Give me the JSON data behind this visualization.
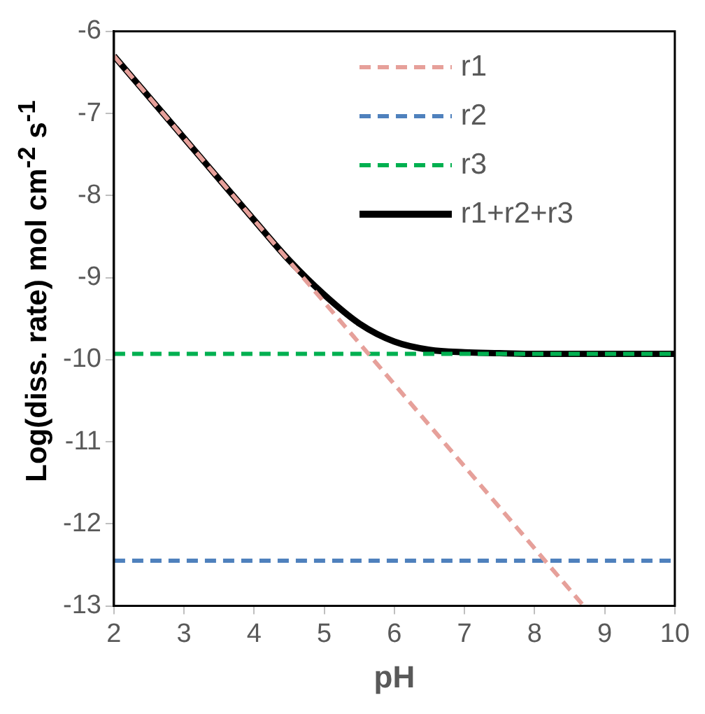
{
  "chart_data": {
    "type": "line",
    "xlabel": "pH",
    "ylabel": "Log(diss. rate) mol cm$^{-2}$ s$^{-1}$",
    "xlim": [
      2,
      10
    ],
    "xticks": [
      2,
      3,
      4,
      5,
      6,
      7,
      8,
      9,
      10
    ],
    "ylim": [
      -13,
      -6
    ],
    "yticks": [
      -13,
      -12,
      -11,
      -10,
      -9,
      -8,
      -7,
      -6
    ],
    "grid": false,
    "legend": "top right",
    "marker": "none",
    "series": [
      {
        "name": "r1",
        "color": "#e6a09a",
        "line_style": "dashed",
        "x": [
          2,
          8.7
        ],
        "values": [
          -6.3,
          -13
        ]
      },
      {
        "name": "r2",
        "color": "#4f81bd",
        "line_style": "dashed",
        "x": [
          2,
          10
        ],
        "values": [
          -12.45,
          -12.45
        ]
      },
      {
        "name": "r3",
        "color": "#00b050",
        "line_style": "dashed",
        "x": [
          2,
          10
        ],
        "values": [
          -9.93,
          -9.93
        ]
      },
      {
        "name": "r1+r2+r3",
        "color": "#000000",
        "line_style": "solid",
        "x": [
          2,
          3,
          4,
          4.5,
          5,
          5.5,
          6,
          6.5,
          7,
          7.5,
          8,
          9,
          10
        ],
        "values": [
          -6.3,
          -7.3,
          -8.3,
          -8.79,
          -9.21,
          -9.56,
          -9.78,
          -9.88,
          -9.91,
          -9.92,
          -9.93,
          -9.93,
          -9.93
        ]
      }
    ]
  }
}
